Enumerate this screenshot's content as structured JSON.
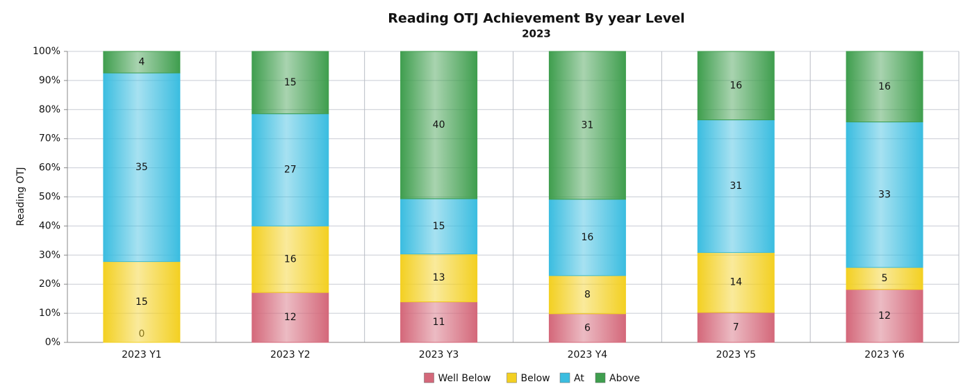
{
  "chart_data": {
    "type": "bar",
    "stacking": "percent",
    "title": "Reading OTJ Achievement By year Level",
    "subtitle": "2023",
    "y_label": "Reading OTJ",
    "categories": [
      "2023 Y1",
      "2023 Y2",
      "2023 Y3",
      "2023 Y4",
      "2023 Y5",
      "2023 Y6"
    ],
    "series": [
      {
        "name": "Well Below",
        "color": "#d4687a",
        "values": [
          0,
          12,
          11,
          6,
          7,
          12
        ]
      },
      {
        "name": "Below",
        "color": "#f3d022",
        "values": [
          15,
          16,
          13,
          8,
          14,
          5
        ]
      },
      {
        "name": "At",
        "color": "#3bbde0",
        "values": [
          35,
          27,
          15,
          16,
          31,
          33
        ]
      },
      {
        "name": "Above",
        "color": "#3f9e4e",
        "values": [
          4,
          15,
          40,
          31,
          16,
          16
        ]
      }
    ],
    "ylim": [
      0,
      100
    ],
    "yticks": [
      {
        "value": 0,
        "label": "0%"
      },
      {
        "value": 10,
        "label": "10%"
      },
      {
        "value": 20,
        "label": "20%"
      },
      {
        "value": 30,
        "label": "30%"
      },
      {
        "value": 40,
        "label": "40%"
      },
      {
        "value": 50,
        "label": "50%"
      },
      {
        "value": 60,
        "label": "60%"
      },
      {
        "value": 70,
        "label": "70%"
      },
      {
        "value": 80,
        "label": "80%"
      },
      {
        "value": 90,
        "label": "90%"
      },
      {
        "value": 100,
        "label": "100%"
      }
    ],
    "grid": true,
    "legend": "bottom"
  }
}
